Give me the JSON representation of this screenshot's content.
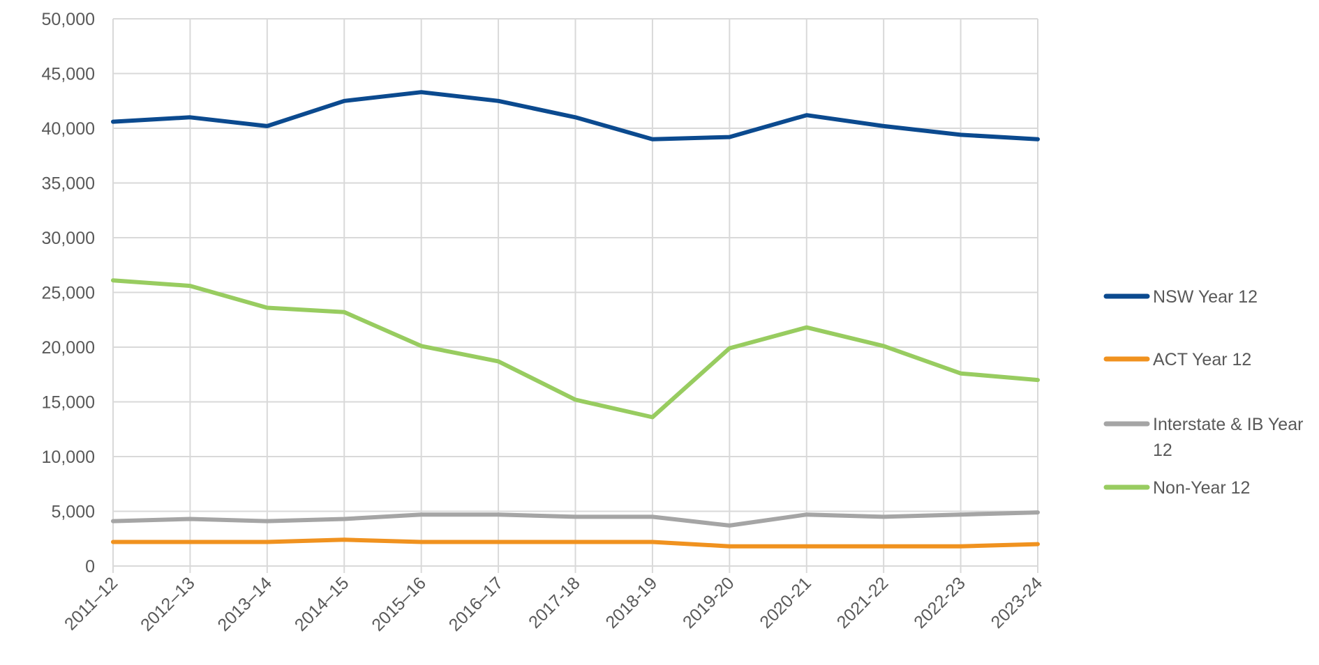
{
  "chart_data": {
    "type": "line",
    "title": "",
    "xlabel": "",
    "ylabel": "",
    "categories": [
      "2011–12",
      "2012–13",
      "2013–14",
      "2014–15",
      "2015–16",
      "2016–17",
      "2017-18",
      "2018-19",
      "2019-20",
      "2020-21",
      "2021-22",
      "2022-23",
      "2023-24"
    ],
    "ylim": [
      0,
      50000
    ],
    "yticks": [
      0,
      5000,
      10000,
      15000,
      20000,
      25000,
      30000,
      35000,
      40000,
      45000,
      50000
    ],
    "ytick_labels": [
      "0",
      "5,000",
      "10,000",
      "15,000",
      "20,000",
      "25,000",
      "30,000",
      "35,000",
      "40,000",
      "45,000",
      "50,000"
    ],
    "grid": true,
    "legend_position": "right",
    "series": [
      {
        "name": "NSW Year 12",
        "color": "#0b4a8f",
        "values": [
          40600,
          41000,
          40200,
          42500,
          43300,
          42500,
          41000,
          39000,
          39200,
          41200,
          40200,
          39400,
          39000
        ]
      },
      {
        "name": "ACT Year 12",
        "color": "#f0921f",
        "values": [
          2200,
          2200,
          2200,
          2400,
          2200,
          2200,
          2200,
          2200,
          1800,
          1800,
          1800,
          1800,
          2000
        ]
      },
      {
        "name": "Interstate & IB Year 12",
        "color": "#a5a5a5",
        "values": [
          4100,
          4300,
          4100,
          4300,
          4700,
          4700,
          4500,
          4500,
          3700,
          4700,
          4500,
          4700,
          4900
        ]
      },
      {
        "name": "Non-Year 12",
        "color": "#98cc60",
        "values": [
          26100,
          25600,
          23600,
          23200,
          20100,
          18700,
          15200,
          13600,
          19900,
          21800,
          20100,
          17600,
          17000
        ]
      }
    ]
  },
  "legend": {
    "items": [
      {
        "label_lines": [
          "NSW Year 12"
        ]
      },
      {
        "label_lines": [
          "ACT Year 12"
        ]
      },
      {
        "label_lines": [
          "Interstate & IB Year",
          "12"
        ]
      },
      {
        "label_lines": [
          "Non-Year 12"
        ]
      }
    ]
  }
}
